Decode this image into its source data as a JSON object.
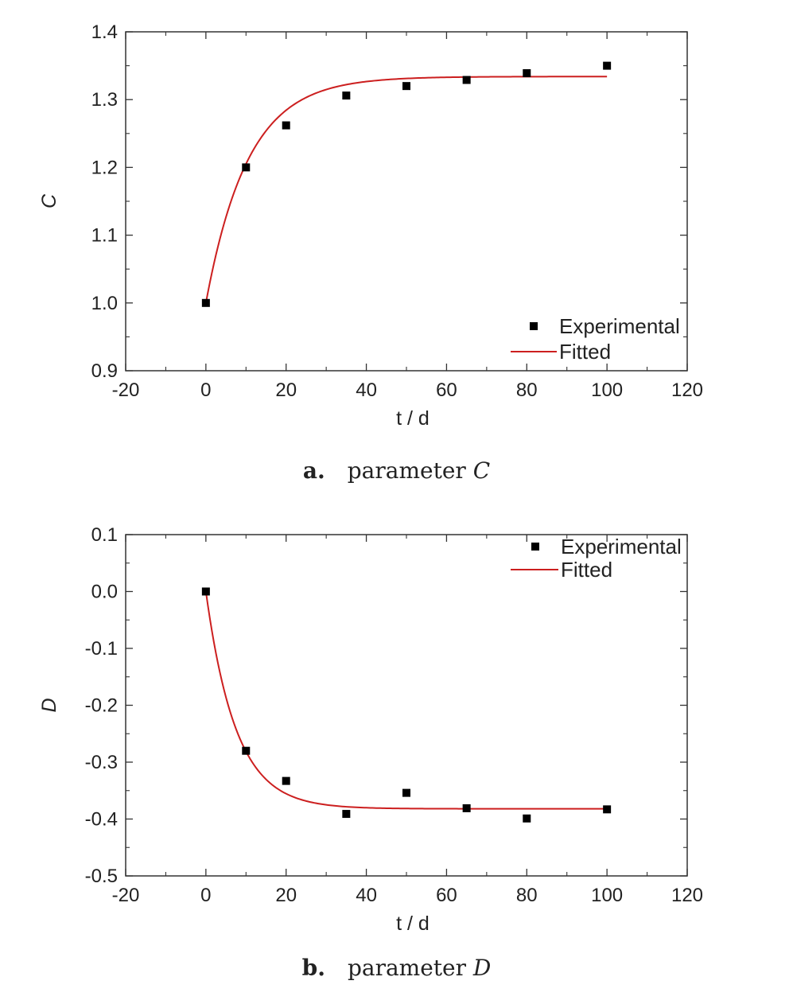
{
  "chart_data": [
    {
      "id": "C",
      "type": "scatter",
      "caption": {
        "letter": "a.",
        "text": "parameter",
        "var": "C"
      },
      "xlabel": {
        "var": "t",
        "unit": " / d"
      },
      "ylabel": "C",
      "xlim": [
        -20,
        120
      ],
      "ylim": [
        0.9,
        1.4
      ],
      "xticks": [
        -20,
        0,
        20,
        40,
        60,
        80,
        100,
        120
      ],
      "yticks": [
        0.9,
        1.0,
        1.1,
        1.2,
        1.3,
        1.4
      ],
      "xtick_labels": [
        "-20",
        "0",
        "20",
        "40",
        "60",
        "80",
        "100",
        "120"
      ],
      "ytick_labels": [
        "0.9",
        "1.0",
        "1.1",
        "1.2",
        "1.3",
        "1.4"
      ],
      "legend_position": "bottom-right",
      "series": [
        {
          "name": "Experimental",
          "kind": "points",
          "color": "#000000",
          "x": [
            0,
            10,
            20,
            35,
            50,
            65,
            80,
            100
          ],
          "y": [
            1.0,
            1.2,
            1.262,
            1.306,
            1.32,
            1.329,
            1.339,
            1.35
          ]
        },
        {
          "name": "Fitted",
          "kind": "line",
          "color": "#cc1f1f",
          "model": {
            "y0": 1.0,
            "yinf": 1.334,
            "tau": 10.5
          }
        }
      ]
    },
    {
      "id": "D",
      "type": "scatter",
      "caption": {
        "letter": "b.",
        "text": "parameter",
        "var": "D"
      },
      "xlabel": {
        "var": "t",
        "unit": " / d"
      },
      "ylabel": "D",
      "xlim": [
        -20,
        120
      ],
      "ylim": [
        -0.5,
        0.1
      ],
      "xticks": [
        -20,
        0,
        20,
        40,
        60,
        80,
        100,
        120
      ],
      "yticks": [
        -0.5,
        -0.4,
        -0.3,
        -0.2,
        -0.1,
        0.0,
        0.1
      ],
      "xtick_labels": [
        "-20",
        "0",
        "20",
        "40",
        "60",
        "80",
        "100",
        "120"
      ],
      "ytick_labels": [
        "-0.5",
        "-0.4",
        "-0.3",
        "-0.2",
        "-0.1",
        "0.0",
        "0.1"
      ],
      "legend_position": "top-right",
      "series": [
        {
          "name": "Experimental",
          "kind": "points",
          "color": "#000000",
          "x": [
            0,
            10,
            20,
            35,
            50,
            65,
            80,
            100
          ],
          "y": [
            0.0,
            -0.28,
            -0.333,
            -0.391,
            -0.354,
            -0.381,
            -0.399,
            -0.383
          ]
        },
        {
          "name": "Fitted",
          "kind": "line",
          "color": "#cc1f1f",
          "model": {
            "y0": 0.0,
            "yinf": -0.382,
            "tau": 7.5
          }
        }
      ]
    }
  ]
}
